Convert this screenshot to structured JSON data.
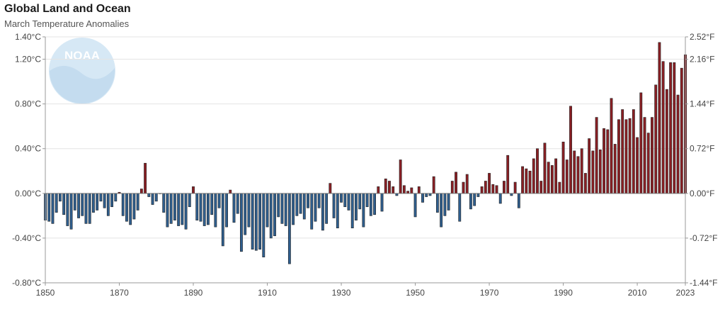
{
  "title": "Global Land and Ocean",
  "subtitle": "March Temperature Anomalies",
  "logo": {
    "text": "NOAA"
  },
  "colors": {
    "positive": "#8b1f24",
    "negative": "#2f5f8f",
    "outline": "#222222",
    "grid": "#e4e4e4",
    "axis": "#999999",
    "logo": "#d6e8f5"
  },
  "chart_data": {
    "type": "bar",
    "x_start": 1850,
    "x_end": 2023,
    "xlim": [
      1850,
      2023
    ],
    "x_ticks": [
      1850,
      1870,
      1890,
      1910,
      1930,
      1950,
      1970,
      1990,
      2010,
      2023
    ],
    "x_tick_labels": [
      "1850",
      "1870",
      "1890",
      "1910",
      "1930",
      "1950",
      "1970",
      "1990",
      "2010",
      "2023"
    ],
    "ylim": [
      -0.8,
      1.4
    ],
    "left_ticks": [
      1.4,
      1.2,
      0.8,
      0.4,
      0.0,
      -0.4,
      -0.8
    ],
    "left_tick_labels": [
      "1.40°C",
      "1.20°C",
      "0.80°C",
      "0.40°C",
      "0.00°C",
      "-0.40°C",
      "-0.80°C"
    ],
    "right_ticks": [
      1.4,
      1.2,
      0.8,
      0.4,
      0.0,
      -0.4,
      -0.8
    ],
    "right_tick_labels": [
      "2.52°F",
      "2.16°F",
      "1.44°F",
      "0.72°F",
      "0.00°F",
      "-0.72°F",
      "-1.44°F"
    ],
    "grid": true,
    "values": [
      -0.24,
      -0.25,
      -0.27,
      -0.17,
      -0.07,
      -0.19,
      -0.29,
      -0.32,
      -0.15,
      -0.22,
      -0.2,
      -0.27,
      -0.27,
      -0.17,
      -0.15,
      -0.07,
      -0.13,
      -0.2,
      -0.12,
      -0.07,
      0.01,
      -0.2,
      -0.25,
      -0.28,
      -0.23,
      -0.15,
      0.04,
      0.27,
      -0.03,
      -0.1,
      -0.07,
      0.0,
      -0.17,
      -0.3,
      -0.27,
      -0.24,
      -0.29,
      -0.28,
      -0.32,
      -0.12,
      0.06,
      -0.24,
      -0.25,
      -0.29,
      -0.28,
      -0.19,
      -0.3,
      -0.13,
      -0.47,
      -0.3,
      0.03,
      -0.26,
      -0.18,
      -0.52,
      -0.37,
      -0.3,
      -0.5,
      -0.51,
      -0.5,
      -0.57,
      -0.3,
      -0.4,
      -0.38,
      -0.21,
      -0.27,
      -0.29,
      -0.63,
      -0.28,
      -0.2,
      -0.18,
      -0.23,
      -0.13,
      -0.32,
      -0.25,
      -0.13,
      -0.33,
      -0.27,
      0.09,
      -0.22,
      -0.31,
      -0.08,
      -0.12,
      -0.15,
      -0.31,
      -0.24,
      -0.14,
      -0.3,
      -0.12,
      -0.2,
      -0.19,
      0.06,
      -0.16,
      0.13,
      0.11,
      0.06,
      -0.02,
      0.3,
      0.07,
      0.02,
      0.05,
      -0.21,
      0.06,
      -0.08,
      -0.03,
      -0.02,
      0.15,
      -0.17,
      -0.3,
      -0.2,
      -0.15,
      0.11,
      0.19,
      -0.25,
      0.1,
      0.17,
      -0.14,
      -0.11,
      -0.03,
      0.06,
      0.11,
      0.18,
      0.08,
      0.07,
      -0.09,
      0.11,
      0.34,
      -0.02,
      0.1,
      -0.13,
      0.24,
      0.22,
      0.2,
      0.31,
      0.4,
      0.11,
      0.45,
      0.28,
      0.25,
      0.31,
      0.1,
      0.46,
      0.3,
      0.78,
      0.38,
      0.33,
      0.4,
      0.18,
      0.49,
      0.38,
      0.68,
      0.39,
      0.58,
      0.57,
      0.85,
      0.44,
      0.66,
      0.75,
      0.66,
      0.67,
      0.75,
      0.5,
      0.9,
      0.68,
      0.54,
      0.68,
      0.97,
      1.35,
      1.18,
      0.93,
      1.17,
      1.17,
      0.88,
      1.12,
      1.24
    ]
  }
}
